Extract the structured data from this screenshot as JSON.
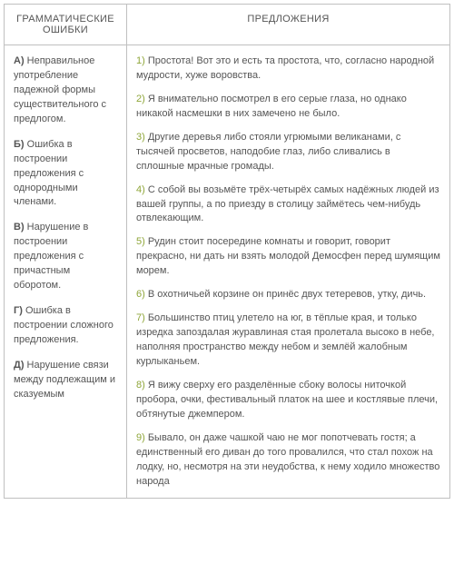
{
  "headers": {
    "left": "ГРАММАТИЧЕСКИЕ ОШИБКИ",
    "right": "ПРЕДЛОЖЕНИЯ"
  },
  "colors": {
    "border": "#c0c0c0",
    "text": "#555555",
    "accent": "#8fa63a"
  },
  "errors": [
    {
      "letter": "А)",
      "text": " Неправильное употребление падежной формы существительного с предлогом."
    },
    {
      "letter": "Б)",
      "text": " Ошибка в построении предложения с однородными членами."
    },
    {
      "letter": "В)",
      "text": " Нарушение в построении предложения с причастным оборотом."
    },
    {
      "letter": "Г)",
      "text": " Ошибка в построении сложного предложения."
    },
    {
      "letter": "Д)",
      "text": " Нарушение связи между подлежащим и сказуемым"
    }
  ],
  "sentences": [
    {
      "num": "1)",
      "text": " Простота! Вот это и есть та простота, что, согласно народной мудрости, хуже воровства."
    },
    {
      "num": "2)",
      "text": " Я внимательно посмотрел в его серые глаза, но однако никакой насмешки в них замечено не было."
    },
    {
      "num": "3)",
      "text": " Другие деревья либо стояли угрюмыми великанами, с тысячей просветов, наподобие глаз, либо сливались в сплошные мрачные громады."
    },
    {
      "num": "4)",
      "text": " С собой вы возьмёте трёх-четырёх самых надёжных людей из вашей группы, а по приезду в столицу займётесь чем-нибудь отвлекающим."
    },
    {
      "num": "5)",
      "text": " Рудин стоит посередине комнаты и говорит, говорит прекрасно, ни дать ни взять молодой Демосфен перед шумящим морем."
    },
    {
      "num": "6)",
      "text": " В охотничьей корзине он принёс двух тетеревов, утку, дичь."
    },
    {
      "num": "7)",
      "text": " Большинство птиц улетело на юг, в тёплые края, и только изредка запоздалая журавлиная стая пролетала высоко в небе, наполняя пространство между небом и землёй жалобным курлыканьем."
    },
    {
      "num": "8)",
      "text": " Я вижу сверху его разделённые сбоку волосы ниточкой пробора, очки, фестивальный платок на шее и костлявые плечи, обтянутые джемпером."
    },
    {
      "num": "9)",
      "text": " Бывало, он даже чашкой чаю не мог попотчевать гостя; а единственный его диван до того провалился, что стал похож на лодку, но, несмотря на эти неудобства, к нему ходило множество народа"
    }
  ]
}
